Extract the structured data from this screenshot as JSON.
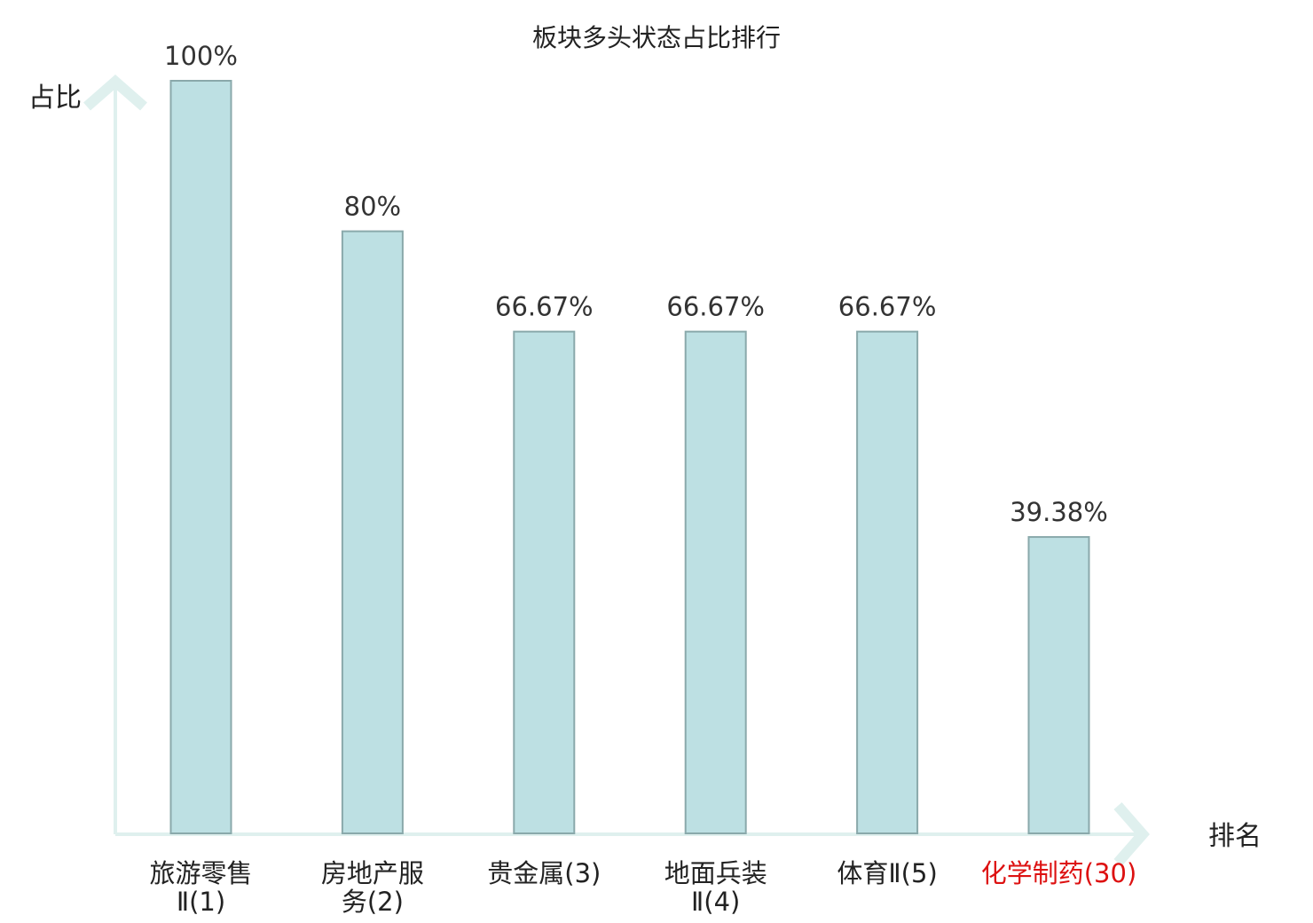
{
  "chart_data": {
    "type": "bar",
    "title": "板块多头状态占比排行",
    "ylabel": "占比",
    "xlabel": "排名",
    "ylim": [
      0,
      100
    ],
    "grid": false,
    "categories": [
      [
        "旅游零售",
        "Ⅱ(1)"
      ],
      [
        "房地产服",
        "务(2)"
      ],
      [
        "贵金属(3)"
      ],
      [
        "地面兵装",
        "Ⅱ(4)"
      ],
      [
        "体育Ⅱ(5)"
      ],
      [
        "化学制药(30)"
      ]
    ],
    "values": [
      100,
      80,
      66.67,
      66.67,
      66.67,
      39.38
    ],
    "value_labels": [
      "100%",
      "80%",
      "66.67%",
      "66.67%",
      "66.67%",
      "39.38%"
    ],
    "highlight_index": 5,
    "colors": {
      "bar_fill": "#bde0e3",
      "bar_stroke": "#8aa9ab",
      "axis": "#dff0ee",
      "text": "#222222",
      "value_text": "#333333",
      "highlight": "#dd1111"
    }
  }
}
